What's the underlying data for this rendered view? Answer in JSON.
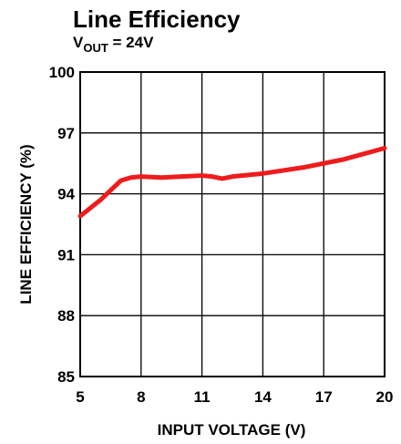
{
  "chart_data": {
    "type": "line",
    "title": "Line Efficiency",
    "subtitle": [
      "V",
      "OUT",
      " = 24V"
    ],
    "x_label": "INPUT VOLTAGE (V)",
    "y_label": "LINE EFFICIENCY (%)",
    "x": [
      5,
      6,
      7,
      7.5,
      8,
      9,
      10,
      11,
      11.5,
      12,
      12.5,
      14,
      16,
      18,
      20
    ],
    "series": [
      {
        "name": "Line Efficiency",
        "color": "#ee1c1c",
        "values": [
          92.9,
          93.7,
          94.65,
          94.8,
          94.85,
          94.8,
          94.85,
          94.9,
          94.85,
          94.75,
          94.85,
          95.0,
          95.3,
          95.7,
          96.25
        ]
      }
    ],
    "xlim": [
      5,
      20
    ],
    "xticks": [
      5,
      8,
      11,
      14,
      17,
      20
    ],
    "ylim": [
      85,
      100
    ],
    "yticks": [
      85,
      88,
      91,
      94,
      97,
      100
    ],
    "grid": true
  }
}
